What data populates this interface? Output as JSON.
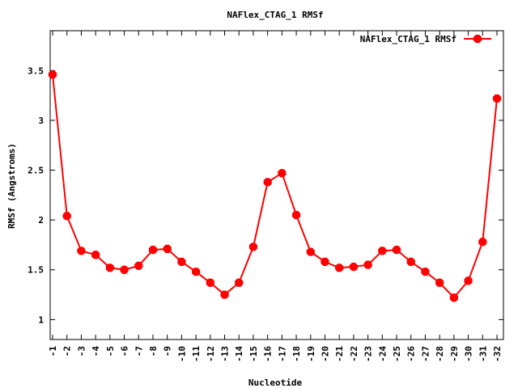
{
  "chart_data": {
    "type": "line",
    "title": "NAFlex_CTAG_1 RMSf",
    "xlabel": "Nucleotide",
    "ylabel": "RMSf (Angstroms)",
    "ylim": [
      0.8,
      3.9
    ],
    "yticks": [
      1,
      1.5,
      2,
      2.5,
      3,
      3.5
    ],
    "ytick_labels": [
      "1",
      "1.5",
      "2",
      "2.5",
      "3",
      "3.5"
    ],
    "categories": [
      "-1",
      "-2",
      "-3",
      "-4",
      "-5",
      "-6",
      "-7",
      "-8",
      "-9",
      "-10",
      "-11",
      "-12",
      "-13",
      "-14",
      "-15",
      "-16",
      "-17",
      "-18",
      "-19",
      "-20",
      "-21",
      "-22",
      "-23",
      "-24",
      "-25",
      "-26",
      "-27",
      "-28",
      "-29",
      "-30",
      "-31",
      "-32"
    ],
    "legend_position": "top-right",
    "grid": false,
    "series": [
      {
        "name": "NAFlex_CTAG_1 RMSf",
        "color": "#ff0000",
        "values": [
          3.46,
          2.04,
          1.69,
          1.65,
          1.52,
          1.5,
          1.54,
          1.7,
          1.71,
          1.58,
          1.48,
          1.37,
          1.25,
          1.37,
          1.73,
          2.38,
          2.47,
          2.05,
          1.68,
          1.58,
          1.52,
          1.53,
          1.55,
          1.69,
          1.7,
          1.58,
          1.48,
          1.37,
          1.22,
          1.39,
          1.78,
          3.22
        ]
      }
    ]
  }
}
